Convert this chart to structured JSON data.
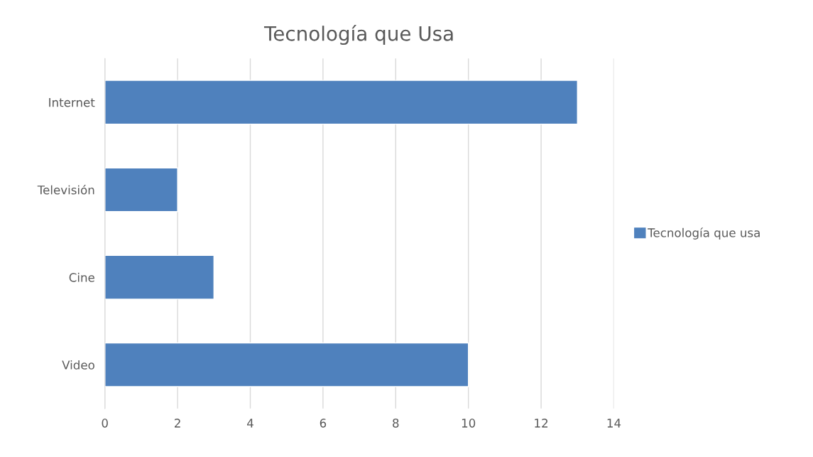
{
  "chart_data": {
    "type": "bar",
    "orientation": "horizontal",
    "title": "Tecnología que Usa",
    "categories": [
      "Internet",
      "Televisión",
      "Cine",
      "Video"
    ],
    "series": [
      {
        "name": "Tecnología que usa",
        "color": "#4f81bd",
        "values": [
          13,
          2,
          3,
          10
        ]
      }
    ],
    "xlim": [
      0,
      14
    ],
    "xticks": [
      0,
      2,
      4,
      6,
      8,
      10,
      12,
      14
    ],
    "grid": "x",
    "legend": "right"
  }
}
